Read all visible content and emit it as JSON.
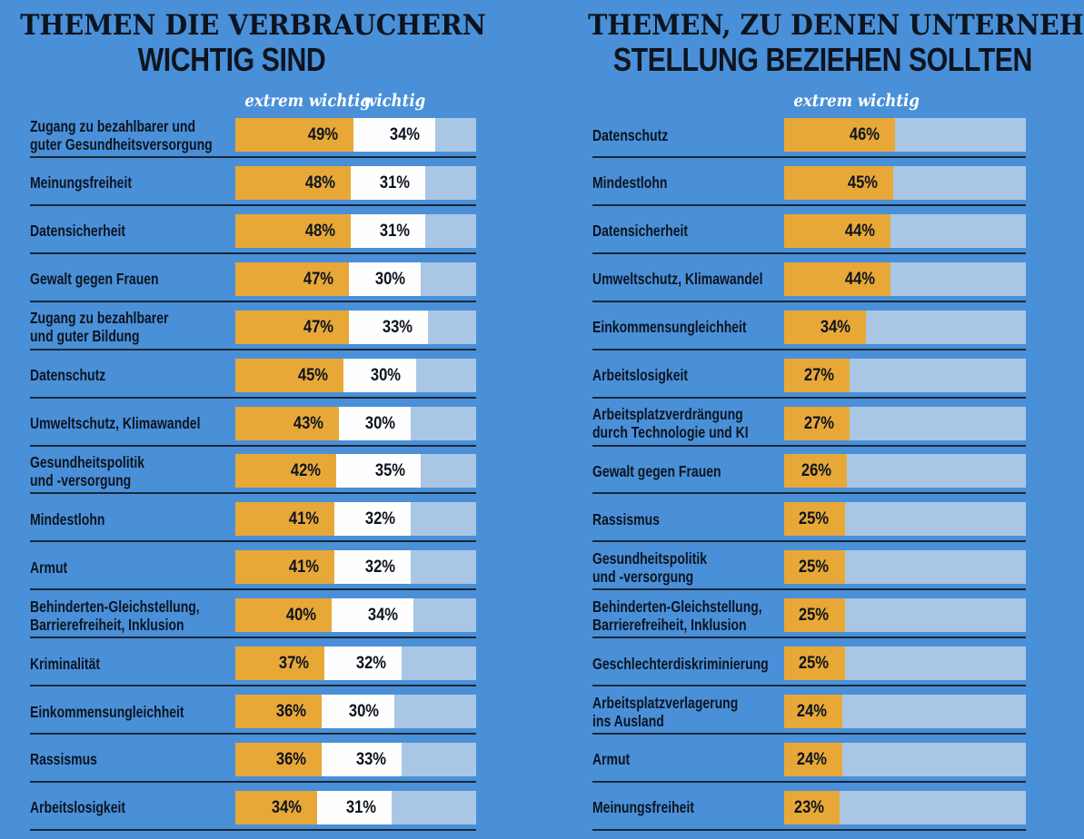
{
  "page": {
    "background_color": "#4A90D8",
    "accent_orange": "#E8A837",
    "remainder_light_blue": "#A9C7E4",
    "segment_white": "#FEFEFE",
    "separator_color": "#1B2735",
    "text_color": "#0D1420",
    "legend_text_color": "#FFFFFF"
  },
  "chart_data": [
    {
      "type": "bar",
      "orientation": "horizontal",
      "unit": "%",
      "xlim": [
        0,
        100
      ],
      "grid": false,
      "legend_position": "top",
      "title": "THEMEN DIE VERBRAUCHERN WICHTIG SIND",
      "title_line1": "THEMEN DIE VERBRAUCHERN",
      "title_line2": "WICHTIG SIND",
      "legend": [
        "extrem wichtig",
        "wichtig"
      ],
      "series_names": [
        "extrem wichtig",
        "wichtig"
      ],
      "rows": [
        {
          "label": "Zugang zu bezahlbarer und guter Gesundheitsversorgung",
          "label_lines": [
            "Zugang zu bezahlbarer und",
            "guter Gesundheitsversorgung"
          ],
          "extrem_wichtig": 49,
          "wichtig": 34
        },
        {
          "label": "Meinungsfreiheit",
          "label_lines": [
            "Meinungsfreiheit"
          ],
          "extrem_wichtig": 48,
          "wichtig": 31
        },
        {
          "label": "Datensicherheit",
          "label_lines": [
            "Datensicherheit"
          ],
          "extrem_wichtig": 48,
          "wichtig": 31
        },
        {
          "label": "Gewalt gegen Frauen",
          "label_lines": [
            "Gewalt gegen Frauen"
          ],
          "extrem_wichtig": 47,
          "wichtig": 30
        },
        {
          "label": "Zugang zu bezahlbarer und guter Bildung",
          "label_lines": [
            "Zugang zu bezahlbarer",
            "und guter Bildung"
          ],
          "extrem_wichtig": 47,
          "wichtig": 33
        },
        {
          "label": "Datenschutz",
          "label_lines": [
            "Datenschutz"
          ],
          "extrem_wichtig": 45,
          "wichtig": 30
        },
        {
          "label": "Umweltschutz, Klimawandel",
          "label_lines": [
            "Umweltschutz, Klimawandel"
          ],
          "extrem_wichtig": 43,
          "wichtig": 30
        },
        {
          "label": "Gesundheitspolitik und -versorgung",
          "label_lines": [
            "Gesundheitspolitik",
            "und -versorgung"
          ],
          "extrem_wichtig": 42,
          "wichtig": 35
        },
        {
          "label": "Mindestlohn",
          "label_lines": [
            "Mindestlohn"
          ],
          "extrem_wichtig": 41,
          "wichtig": 32
        },
        {
          "label": "Armut",
          "label_lines": [
            "Armut"
          ],
          "extrem_wichtig": 41,
          "wichtig": 32
        },
        {
          "label": "Behinderten-Gleichstellung, Barrierefreiheit, Inklusion",
          "label_lines": [
            "Behinderten-Gleichstellung,",
            "Barrierefreiheit, Inklusion"
          ],
          "extrem_wichtig": 40,
          "wichtig": 34
        },
        {
          "label": "Kriminalität",
          "label_lines": [
            "Kriminalität"
          ],
          "extrem_wichtig": 37,
          "wichtig": 32
        },
        {
          "label": "Einkommensungleichheit",
          "label_lines": [
            "Einkommensungleichheit"
          ],
          "extrem_wichtig": 36,
          "wichtig": 30
        },
        {
          "label": "Rassismus",
          "label_lines": [
            "Rassismus"
          ],
          "extrem_wichtig": 36,
          "wichtig": 33
        },
        {
          "label": "Arbeitslosigkeit",
          "label_lines": [
            "Arbeitslosigkeit"
          ],
          "extrem_wichtig": 34,
          "wichtig": 31
        }
      ]
    },
    {
      "type": "bar",
      "orientation": "horizontal",
      "unit": "%",
      "xlim": [
        0,
        100
      ],
      "grid": false,
      "legend_position": "top",
      "title": "THEMEN, ZU DENEN UNTERNEHMEN STELLUNG BEZIEHEN SOLLTEN",
      "title_line1": "THEMEN, ZU DENEN UNTERNEHMEN",
      "title_line2": "STELLUNG BEZIEHEN SOLLTEN",
      "legend": [
        "extrem wichtig"
      ],
      "series_names": [
        "extrem wichtig"
      ],
      "rows": [
        {
          "label": "Datenschutz",
          "label_lines": [
            "Datenschutz"
          ],
          "extrem_wichtig": 46
        },
        {
          "label": "Mindestlohn",
          "label_lines": [
            "Mindestlohn"
          ],
          "extrem_wichtig": 45
        },
        {
          "label": "Datensicherheit",
          "label_lines": [
            "Datensicherheit"
          ],
          "extrem_wichtig": 44
        },
        {
          "label": "Umweltschutz, Klimawandel",
          "label_lines": [
            "Umweltschutz, Klimawandel"
          ],
          "extrem_wichtig": 44
        },
        {
          "label": "Einkommensungleichheit",
          "label_lines": [
            "Einkommensungleichheit"
          ],
          "extrem_wichtig": 34
        },
        {
          "label": "Arbeitslosigkeit",
          "label_lines": [
            "Arbeitslosigkeit"
          ],
          "extrem_wichtig": 27
        },
        {
          "label": "Arbeitsplatzverdrängung durch Technologie und KI",
          "label_lines": [
            "Arbeitsplatzverdrängung",
            "durch Technologie und KI"
          ],
          "extrem_wichtig": 27
        },
        {
          "label": "Gewalt gegen Frauen",
          "label_lines": [
            "Gewalt gegen Frauen"
          ],
          "extrem_wichtig": 26
        },
        {
          "label": "Rassismus",
          "label_lines": [
            "Rassismus"
          ],
          "extrem_wichtig": 25
        },
        {
          "label": "Gesundheitspolitik und -versorgung",
          "label_lines": [
            "Gesundheitspolitik",
            "und -versorgung"
          ],
          "extrem_wichtig": 25
        },
        {
          "label": "Behinderten-Gleichstellung, Barrierefreiheit, Inklusion",
          "label_lines": [
            "Behinderten-Gleichstellung,",
            "Barrierefreiheit, Inklusion"
          ],
          "extrem_wichtig": 25
        },
        {
          "label": "Geschlechterdiskriminierung",
          "label_lines": [
            "Geschlechterdiskriminierung"
          ],
          "extrem_wichtig": 25
        },
        {
          "label": "Arbeitsplatzverlagerung ins Ausland",
          "label_lines": [
            "Arbeitsplatzverlagerung",
            "ins Ausland"
          ],
          "extrem_wichtig": 24
        },
        {
          "label": "Armut",
          "label_lines": [
            "Armut"
          ],
          "extrem_wichtig": 24
        },
        {
          "label": "Meinungsfreiheit",
          "label_lines": [
            "Meinungsfreiheit"
          ],
          "extrem_wichtig": 23
        }
      ]
    }
  ]
}
